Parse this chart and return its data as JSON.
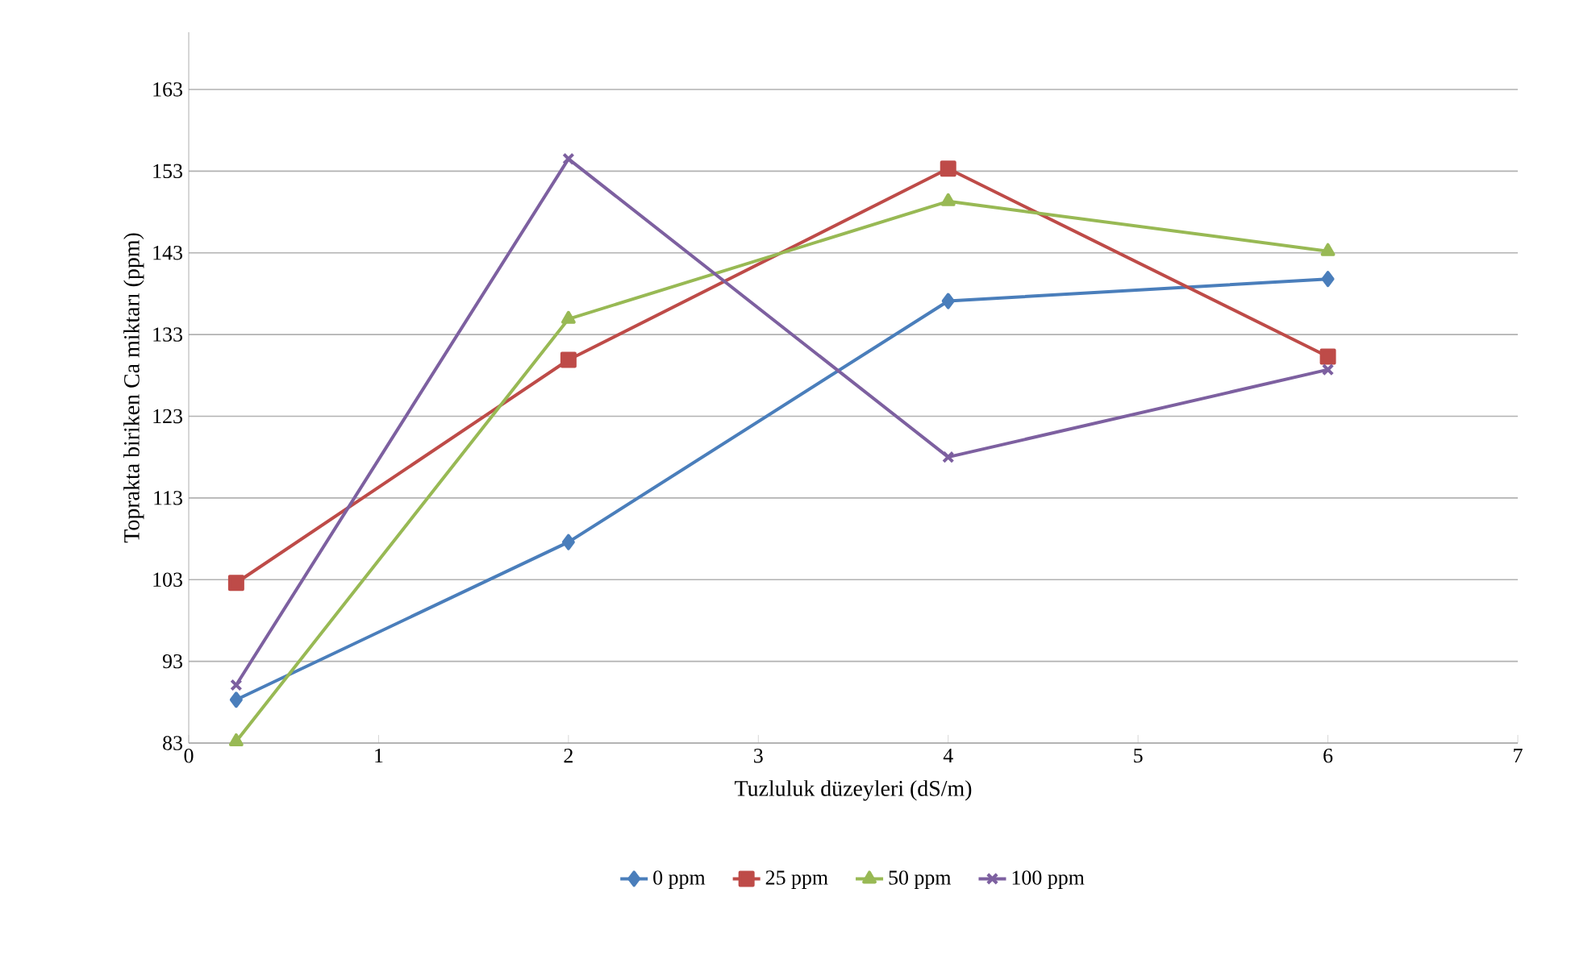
{
  "chart_data": {
    "type": "line",
    "xlabel": "Tuzluluk düzeyleri (dS/m)",
    "ylabel": "Toprakta biriken Ca miktarı (ppm)",
    "x": [
      0.25,
      2,
      4,
      6
    ],
    "series": [
      {
        "name": "0 ppm",
        "color": "#4a7ebb",
        "marker": "diamond",
        "values": [
          88.3,
          107.6,
          137.1,
          139.8
        ]
      },
      {
        "name": "25 ppm",
        "color": "#be4b48",
        "marker": "square",
        "values": [
          102.6,
          129.9,
          153.3,
          130.3
        ]
      },
      {
        "name": "50 ppm",
        "color": "#98b954",
        "marker": "triangle",
        "values": [
          83.2,
          134.9,
          149.3,
          143.2
        ]
      },
      {
        "name": "100 ppm",
        "color": "#7d60a0",
        "marker": "cross",
        "values": [
          90.1,
          154.5,
          118.0,
          128.7
        ]
      }
    ],
    "xlim": [
      0,
      7
    ],
    "xticks": [
      0,
      1,
      2,
      3,
      4,
      5,
      6,
      7
    ],
    "ylim": [
      83,
      170
    ],
    "yticks": [
      83,
      93,
      103,
      113,
      123,
      133,
      143,
      153,
      163
    ],
    "grid": "y",
    "legend": "bottom",
    "line_style": "solid"
  }
}
